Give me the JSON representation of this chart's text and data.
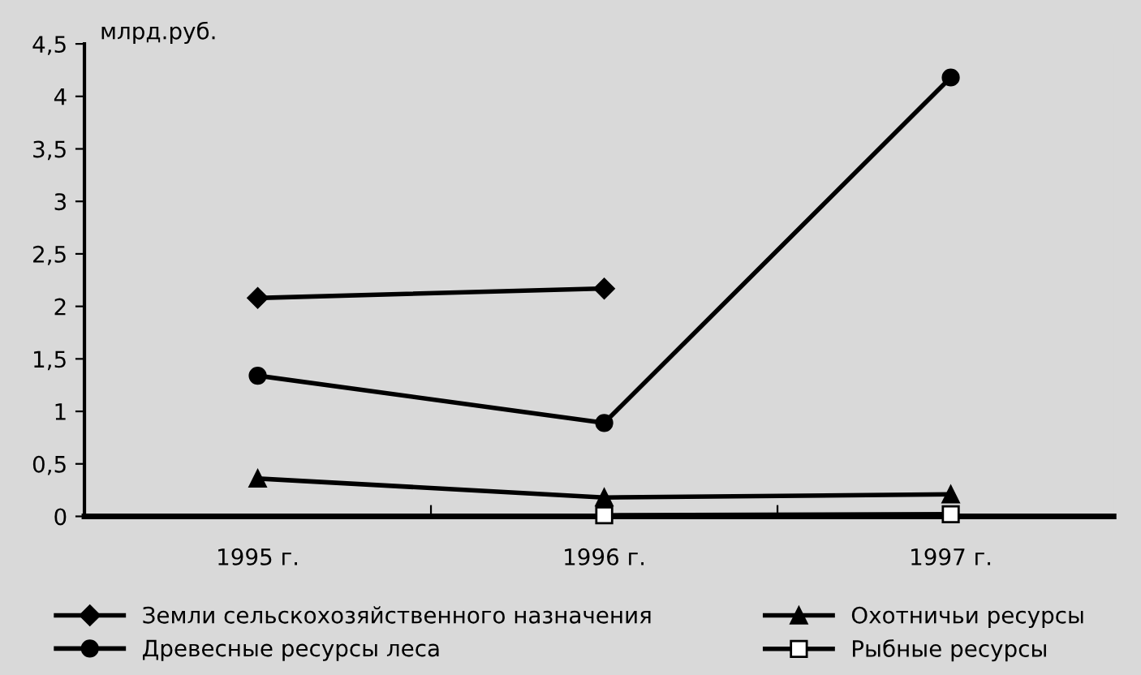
{
  "chart_data": {
    "type": "line",
    "ylabel": "млрд.руб.",
    "categories": [
      "1995 г.",
      "1996 г.",
      "1997 г."
    ],
    "series": [
      {
        "name": "Земли сельскохозяйственного назначения",
        "color": "#000000",
        "marker": "diamond",
        "values": [
          2.08,
          2.17,
          null
        ]
      },
      {
        "name": "Древесные ресурсы леса",
        "color": "#000000",
        "marker": "circle",
        "values": [
          1.34,
          0.89,
          4.18
        ]
      },
      {
        "name": "Охотничьи ресурсы",
        "color": "#000000",
        "marker": "triangle",
        "values": [
          0.36,
          0.18,
          0.21
        ]
      },
      {
        "name": "Рыбные ресурсы",
        "color": "#000000",
        "marker": "square",
        "values": [
          null,
          0.01,
          0.02
        ]
      }
    ],
    "ylim": [
      0,
      4.5
    ],
    "yticks": [
      0,
      {
        "value": 0.5,
        "label": "0,5"
      },
      1,
      {
        "value": 1.5,
        "label": "1,5"
      },
      2,
      {
        "value": 2.5,
        "label": "2,5"
      },
      3,
      {
        "value": 3.5,
        "label": "3,5"
      },
      4,
      {
        "value": 4.5,
        "label": "4,5"
      }
    ],
    "grid": false,
    "legend": "bottom",
    "line_style": "solid"
  }
}
